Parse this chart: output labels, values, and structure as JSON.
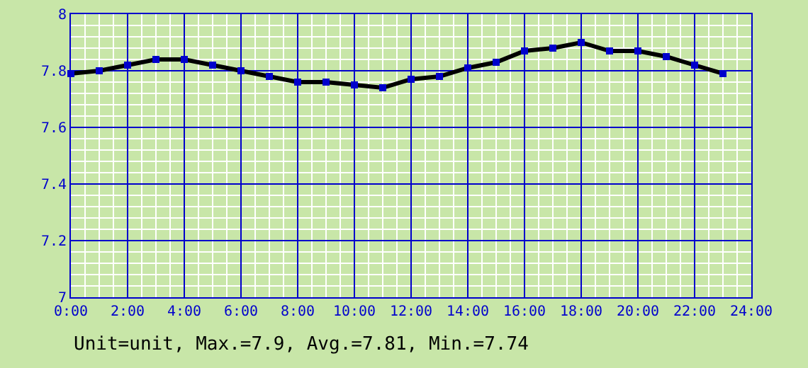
{
  "chart_data": {
    "type": "line",
    "x": [
      0,
      1,
      2,
      3,
      4,
      5,
      6,
      7,
      8,
      9,
      10,
      11,
      12,
      13,
      14,
      15,
      16,
      17,
      18,
      19,
      20,
      21,
      22,
      23
    ],
    "series": [
      {
        "color": "#000000",
        "values": [
          7.79,
          7.8,
          7.82,
          7.84,
          7.84,
          7.82,
          7.8,
          7.78,
          7.76,
          7.76,
          7.75,
          7.74,
          7.77,
          7.78,
          7.81,
          7.83,
          7.87,
          7.88,
          7.9,
          7.87,
          7.87,
          7.85,
          7.82,
          7.79
        ]
      }
    ],
    "xlim": [
      0,
      24
    ],
    "xticks": [
      {
        "value": 0,
        "label": "0:00"
      },
      {
        "value": 2,
        "label": "2:00"
      },
      {
        "value": 4,
        "label": "4:00"
      },
      {
        "value": 6,
        "label": "6:00"
      },
      {
        "value": 8,
        "label": "8:00"
      },
      {
        "value": 10,
        "label": "10:00"
      },
      {
        "value": 12,
        "label": "12:00"
      },
      {
        "value": 14,
        "label": "14:00"
      },
      {
        "value": 16,
        "label": "16:00"
      },
      {
        "value": 18,
        "label": "18:00"
      },
      {
        "value": 20,
        "label": "20:00"
      },
      {
        "value": 22,
        "label": "22:00"
      },
      {
        "value": 24,
        "label": "24:00"
      }
    ],
    "ylim": [
      7,
      8
    ],
    "yticks": [
      7,
      7.2,
      7.4,
      7.6,
      7.8,
      8
    ],
    "grid": true,
    "marker": "square",
    "line_style": "solid",
    "annotations": [
      "Unit=unit, Max.=7.9, Avg.=7.81, Min.=7.74"
    ]
  }
}
